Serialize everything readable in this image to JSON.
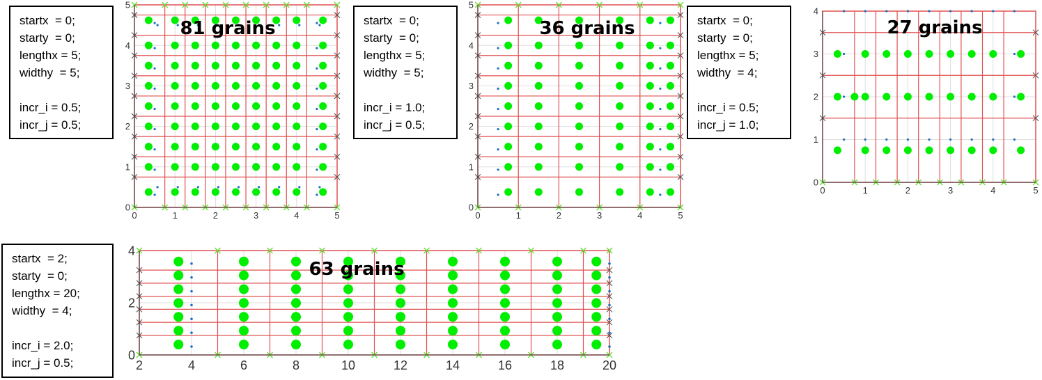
{
  "panels": [
    {
      "params": [
        "startx  = 0;",
        "starty  = 0;",
        "lengthx = 5;",
        "widthy  = 5;",
        "",
        "incr_i = 0.5;",
        "incr_j = 0.5;"
      ],
      "grain_label": "81 grains",
      "xlim": [
        0,
        5
      ],
      "ylim": [
        0,
        5
      ],
      "xticks": [
        "0",
        "1",
        "2",
        "3",
        "4",
        "5"
      ],
      "yticks": [
        "0",
        "1",
        "2",
        "3",
        "4",
        "5"
      ]
    },
    {
      "params": [
        "startx  = 0;",
        "starty  = 0;",
        "lengthx = 5;",
        "widthy  = 5;",
        "",
        "incr_i = 1.0;",
        "incr_j = 0.5;"
      ],
      "grain_label": "36 grains",
      "xlim": [
        0,
        5
      ],
      "ylim": [
        0,
        5
      ],
      "xticks": [
        "0",
        "1",
        "2",
        "3",
        "4",
        "5"
      ],
      "yticks": [
        "0",
        "1",
        "2",
        "3",
        "4",
        "5"
      ]
    },
    {
      "params": [
        "startx  = 0;",
        "starty  = 0;",
        "lengthx = 5;",
        "widthy  = 4;",
        "",
        "incr_i = 0.5;",
        "incr_j = 1.0;"
      ],
      "grain_label": "27 grains",
      "xlim": [
        0,
        5
      ],
      "ylim": [
        0,
        4
      ],
      "xticks": [
        "0",
        "1",
        "2",
        "3",
        "4",
        "5"
      ],
      "yticks": [
        "0",
        "1",
        "2",
        "3",
        "4"
      ]
    },
    {
      "params": [
        "startx  = 2;",
        "starty  = 0;",
        "lengthx = 20;",
        "widthy  = 4;",
        "",
        "incr_i = 2.0;",
        "incr_j = 0.5;"
      ],
      "grain_label": "63 grains",
      "xlim": [
        2,
        20
      ],
      "ylim": [
        0,
        4
      ],
      "xticks": [
        "2",
        "4",
        "6",
        "8",
        "10",
        "12",
        "14",
        "16",
        "18",
        "20"
      ],
      "yticks": [
        "0",
        "2",
        "4"
      ]
    }
  ],
  "colors": {
    "grain": "#00ee00",
    "grid_line": "#e05050",
    "blue_dot": "#1f6fc0",
    "cross_mark": "#555555",
    "green_cross": "#66dd33",
    "axes": "#333333"
  }
}
